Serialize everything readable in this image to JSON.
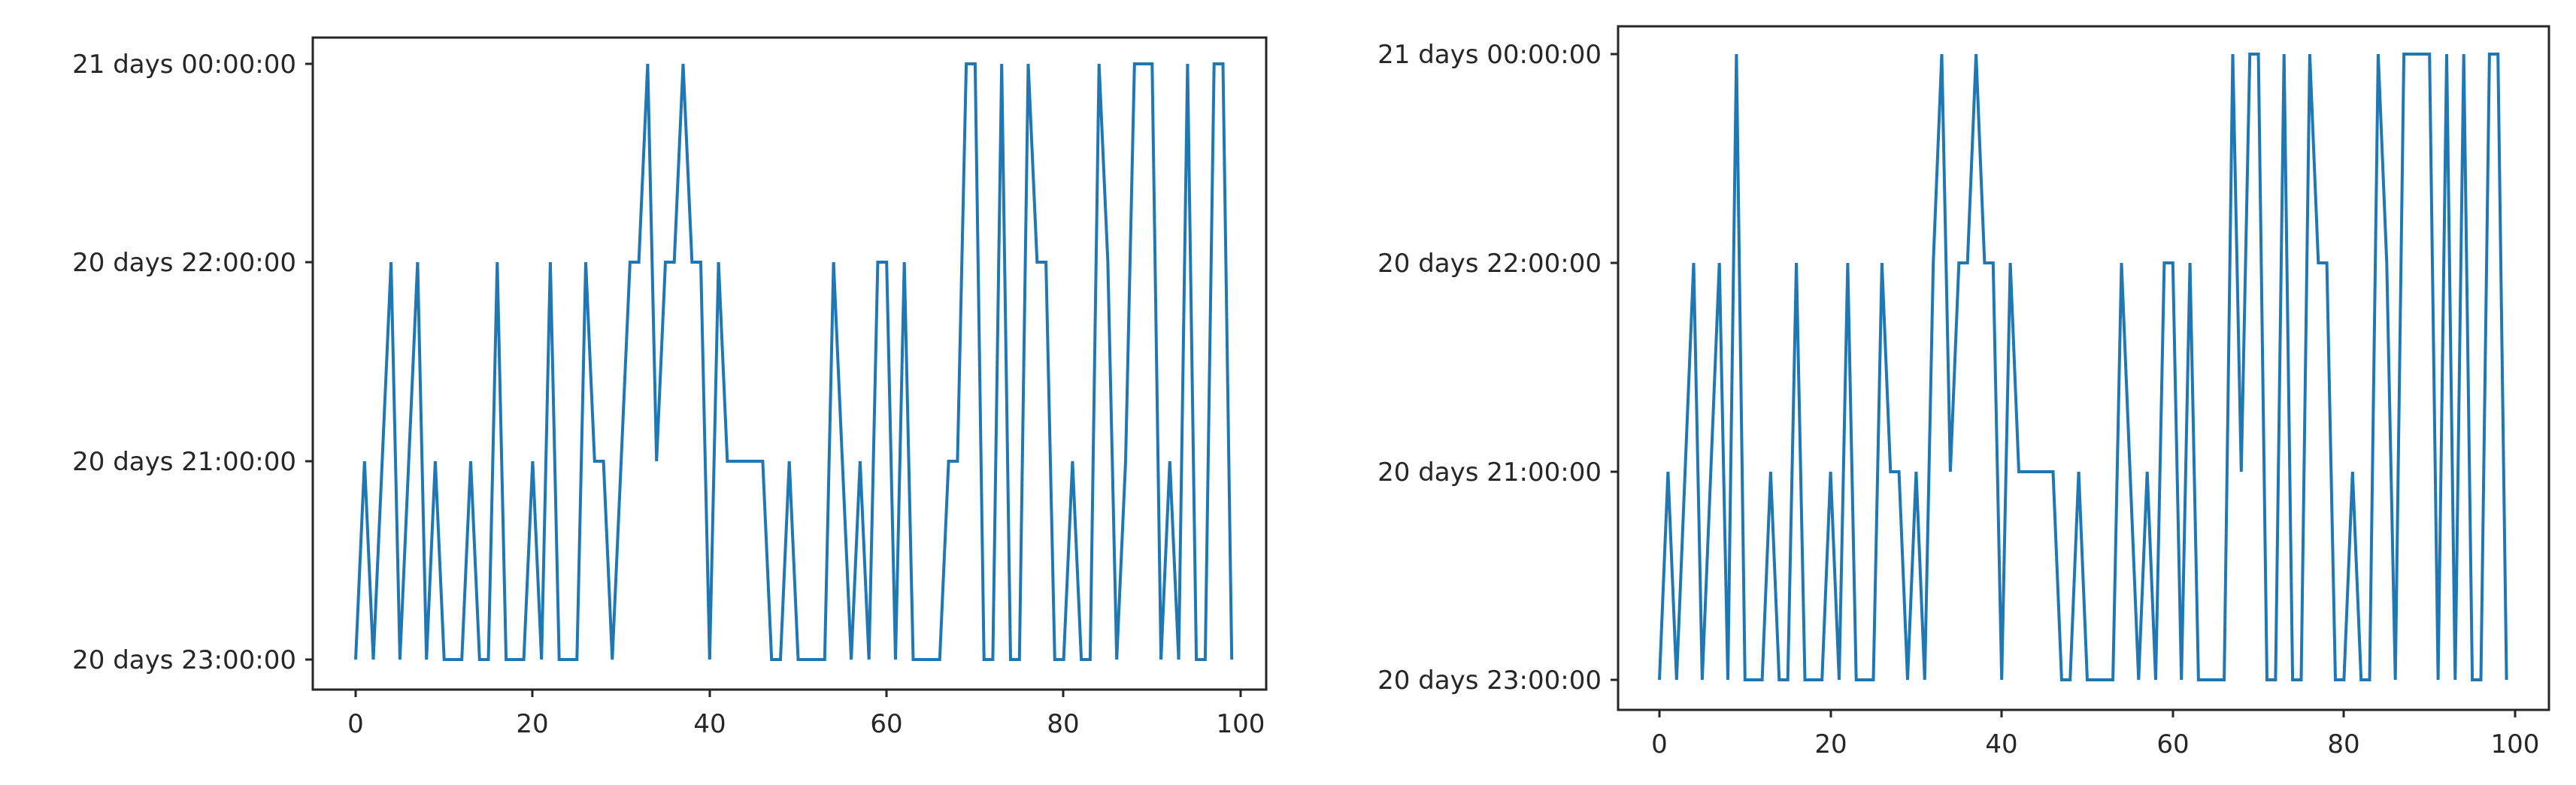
{
  "chart_data": [
    {
      "type": "line",
      "title": "",
      "xlabel": "",
      "ylabel": "",
      "y_categories": [
        "20 days 23:00:00",
        "20 days 21:00:00",
        "20 days 22:00:00",
        "21 days 00:00:00"
      ],
      "xticks": [
        0,
        20,
        40,
        60,
        80,
        100
      ],
      "xlim": [
        -5,
        104
      ],
      "grid": false,
      "legend": null,
      "line_color": "#1f77b4",
      "x": "0..99",
      "values": [
        "20 days 23:00:00",
        "20 days 21:00:00",
        "20 days 23:00:00",
        "20 days 21:00:00",
        "20 days 22:00:00",
        "20 days 23:00:00",
        "20 days 21:00:00",
        "20 days 22:00:00",
        "20 days 23:00:00",
        "20 days 21:00:00",
        "20 days 23:00:00",
        "20 days 23:00:00",
        "20 days 23:00:00",
        "20 days 21:00:00",
        "20 days 23:00:00",
        "20 days 23:00:00",
        "20 days 22:00:00",
        "20 days 23:00:00",
        "20 days 23:00:00",
        "20 days 23:00:00",
        "20 days 21:00:00",
        "20 days 23:00:00",
        "20 days 22:00:00",
        "20 days 23:00:00",
        "20 days 23:00:00",
        "20 days 23:00:00",
        "20 days 22:00:00",
        "20 days 21:00:00",
        "20 days 21:00:00",
        "20 days 23:00:00",
        "20 days 21:00:00",
        "20 days 22:00:00",
        "20 days 22:00:00",
        "21 days 00:00:00",
        "20 days 21:00:00",
        "20 days 22:00:00",
        "20 days 22:00:00",
        "21 days 00:00:00",
        "20 days 22:00:00",
        "20 days 22:00:00",
        "20 days 23:00:00",
        "20 days 22:00:00",
        "20 days 21:00:00",
        "20 days 21:00:00",
        "20 days 21:00:00",
        "20 days 21:00:00",
        "20 days 21:00:00",
        "20 days 23:00:00",
        "20 days 23:00:00",
        "20 days 21:00:00",
        "20 days 23:00:00",
        "20 days 23:00:00",
        "20 days 23:00:00",
        "20 days 23:00:00",
        "20 days 22:00:00",
        "20 days 21:00:00",
        "20 days 23:00:00",
        "20 days 21:00:00",
        "20 days 23:00:00",
        "20 days 22:00:00",
        "20 days 22:00:00",
        "20 days 23:00:00",
        "20 days 22:00:00",
        "20 days 23:00:00",
        "20 days 23:00:00",
        "20 days 23:00:00",
        "20 days 23:00:00",
        "20 days 21:00:00",
        "20 days 21:00:00",
        "21 days 00:00:00",
        "21 days 00:00:00",
        "20 days 23:00:00",
        "20 days 23:00:00",
        "21 days 00:00:00",
        "20 days 23:00:00",
        "20 days 23:00:00",
        "21 days 00:00:00",
        "20 days 22:00:00",
        "20 days 22:00:00",
        "20 days 23:00:00",
        "20 days 23:00:00",
        "20 days 21:00:00",
        "20 days 23:00:00",
        "20 days 23:00:00",
        "21 days 00:00:00",
        "20 days 22:00:00",
        "20 days 23:00:00",
        "20 days 21:00:00",
        "21 days 00:00:00",
        "21 days 00:00:00",
        "21 days 00:00:00",
        "20 days 23:00:00",
        "20 days 21:00:00",
        "20 days 23:00:00",
        "21 days 00:00:00",
        "20 days 23:00:00",
        "20 days 23:00:00",
        "21 days 00:00:00",
        "21 days 00:00:00",
        "20 days 23:00:00"
      ],
      "level_codes": [
        0,
        1,
        0,
        1,
        2,
        0,
        1,
        2,
        0,
        1,
        0,
        0,
        0,
        1,
        0,
        0,
        2,
        0,
        0,
        0,
        1,
        0,
        2,
        0,
        0,
        0,
        2,
        1,
        1,
        0,
        1,
        2,
        2,
        3,
        1,
        2,
        2,
        3,
        2,
        2,
        0,
        2,
        1,
        1,
        1,
        1,
        1,
        0,
        0,
        1,
        0,
        0,
        0,
        0,
        2,
        1,
        0,
        1,
        0,
        2,
        2,
        0,
        2,
        0,
        0,
        0,
        0,
        1,
        1,
        3,
        3,
        0,
        0,
        3,
        0,
        0,
        3,
        2,
        2,
        0,
        0,
        1,
        0,
        0,
        3,
        2,
        0,
        1,
        3,
        3,
        3,
        0,
        1,
        0,
        3,
        0,
        0,
        3,
        3,
        0
      ]
    },
    {
      "type": "line",
      "title": "",
      "xlabel": "",
      "ylabel": "",
      "y_categories": [
        "20 days 23:00:00",
        "20 days 21:00:00",
        "20 days 22:00:00",
        "21 days 00:00:00"
      ],
      "xticks": [
        0,
        20,
        40,
        60,
        80,
        100
      ],
      "xlim": [
        -5,
        104
      ],
      "grid": false,
      "legend": null,
      "line_color": "#1f77b4",
      "x": "0..99",
      "level_codes": [
        0,
        1,
        0,
        1,
        2,
        0,
        1,
        2,
        0,
        3,
        0,
        0,
        0,
        1,
        0,
        0,
        2,
        0,
        0,
        0,
        1,
        0,
        2,
        0,
        0,
        0,
        2,
        1,
        1,
        0,
        1,
        0,
        2,
        3,
        1,
        2,
        2,
        3,
        2,
        2,
        0,
        2,
        1,
        1,
        1,
        1,
        1,
        0,
        0,
        1,
        0,
        0,
        0,
        0,
        2,
        1,
        0,
        1,
        0,
        2,
        2,
        0,
        2,
        0,
        0,
        0,
        0,
        3,
        1,
        3,
        3,
        0,
        0,
        3,
        0,
        0,
        3,
        2,
        2,
        0,
        0,
        1,
        0,
        0,
        3,
        2,
        0,
        3,
        3,
        3,
        3,
        0,
        3,
        0,
        3,
        0,
        0,
        3,
        3,
        0
      ]
    }
  ],
  "left_chart": {
    "ytick_labels": [
      "21 days 00:00:00",
      "20 days 22:00:00",
      "20 days 21:00:00",
      "20 days 23:00:00"
    ],
    "xtick_labels": [
      "0",
      "20",
      "40",
      "60",
      "80",
      "100"
    ]
  },
  "right_chart": {
    "ytick_labels": [
      "21 days 00:00:00",
      "20 days 22:00:00",
      "20 days 21:00:00",
      "20 days 23:00:00"
    ],
    "xtick_labels": [
      "0",
      "20",
      "40",
      "60",
      "80",
      "100"
    ]
  }
}
